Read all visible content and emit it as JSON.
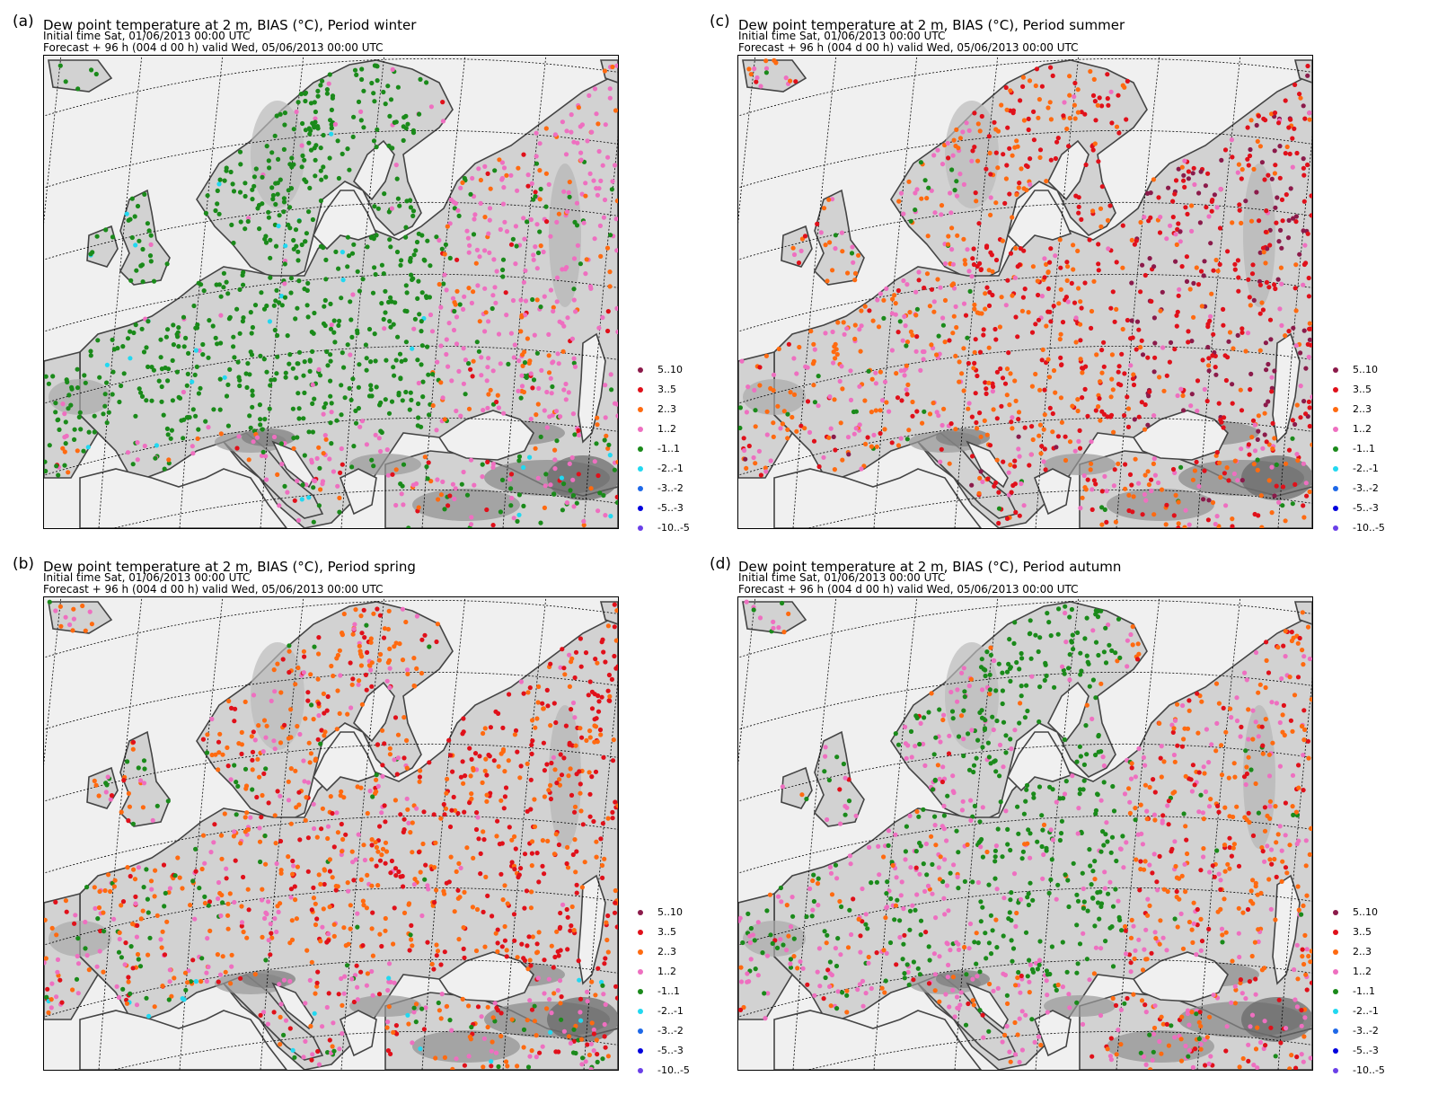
{
  "legend_classes": [
    {
      "label": "5..10",
      "color": "#8b1a4a"
    },
    {
      "label": "3..5",
      "color": "#e0101a"
    },
    {
      "label": "2..3",
      "color": "#ff6a10"
    },
    {
      "label": "1..2",
      "color": "#ee6fc0"
    },
    {
      "label": "-1..1",
      "color": "#1a8a1a"
    },
    {
      "label": "-2..-1",
      "color": "#22d8f0"
    },
    {
      "label": "-3..-2",
      "color": "#1e68e8"
    },
    {
      "label": "-5..-3",
      "color": "#0000dd"
    },
    {
      "label": "-10..-5",
      "color": "#6a40e8"
    }
  ],
  "panels": [
    {
      "id": "winter",
      "letter": "(a)",
      "title": "Dew point temperature at 2 m, BIAS (°C), Period winter",
      "initial_time": "Initial time  Sat, 01/06/2013  00:00 UTC",
      "forecast": "Forecast  +  96 h  (004 d 00 h)  valid Wed, 05/06/2013 00:00 UTC",
      "mix": {
        "west": [
          0,
          0,
          0,
          3,
          92,
          5,
          0,
          0,
          0
        ],
        "center": [
          0,
          0,
          0,
          5,
          93,
          2,
          0,
          0,
          0
        ],
        "east": [
          0,
          6,
          20,
          60,
          14,
          0,
          0,
          0,
          0
        ],
        "south": [
          0,
          10,
          15,
          35,
          35,
          5,
          0,
          0,
          0
        ]
      }
    },
    {
      "id": "summer",
      "letter": "(c)",
      "title": "Dew point temperature at 2 m, BIAS (°C), Period summer",
      "initial_time": "Initial time  Sat, 01/06/2013  00:00 UTC",
      "forecast": "Forecast  +  96 h  (004 d 00 h)  valid Wed, 05/06/2013 00:00 UTC",
      "mix": {
        "west": [
          0,
          10,
          40,
          40,
          10,
          0,
          0,
          0,
          0
        ],
        "center": [
          0,
          55,
          40,
          5,
          0,
          0,
          0,
          0,
          0
        ],
        "east": [
          25,
          50,
          15,
          10,
          0,
          0,
          0,
          0,
          0
        ],
        "south": [
          5,
          35,
          35,
          20,
          5,
          0,
          0,
          0,
          0
        ]
      }
    },
    {
      "id": "spring",
      "letter": "(b)",
      "title": "Dew point temperature at 2 m, BIAS (°C), Period spring",
      "initial_time": "Initial time  Sat, 01/06/2013  00:00 UTC",
      "forecast": "Forecast  +  96 h  (004 d 00 h)  valid Wed, 05/06/2013 00:00 UTC",
      "mix": {
        "west": [
          0,
          15,
          45,
          25,
          15,
          0,
          0,
          0,
          0
        ],
        "center": [
          0,
          25,
          55,
          15,
          5,
          0,
          0,
          0,
          0
        ],
        "east": [
          0,
          55,
          40,
          5,
          0,
          0,
          0,
          0,
          0
        ],
        "south": [
          0,
          20,
          25,
          35,
          15,
          5,
          0,
          0,
          0
        ]
      }
    },
    {
      "id": "autumn",
      "letter": "(d)",
      "title": "Dew point temperature at 2 m, BIAS (°C), Period autumn",
      "initial_time": "Initial time  Sat, 01/06/2013  00:00 UTC",
      "forecast": "Forecast  +  96 h  (004 d 00 h)  valid Wed, 05/06/2013 00:00 UTC",
      "mix": {
        "west": [
          0,
          3,
          12,
          50,
          35,
          0,
          0,
          0,
          0
        ],
        "center": [
          0,
          0,
          5,
          15,
          80,
          0,
          0,
          0,
          0
        ],
        "east": [
          0,
          20,
          45,
          30,
          5,
          0,
          0,
          0,
          0
        ],
        "south": [
          0,
          15,
          25,
          45,
          15,
          0,
          0,
          0,
          0
        ]
      }
    }
  ]
}
